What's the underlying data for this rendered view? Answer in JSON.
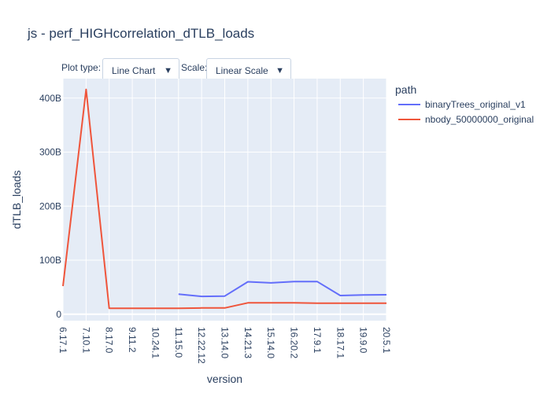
{
  "title": "js - perf_HIGHcorrelation_dTLB_loads",
  "controls": {
    "plot_type_label": "Plot type:",
    "plot_type_value": "Line Chart",
    "scale_label": "Scale:",
    "scale_value": "Linear Scale",
    "dropdown_arrow": "▼"
  },
  "colors": {
    "plot_bg": "#e5ecf6",
    "grid": "#ffffff",
    "text": "#2a3f5f",
    "series_1": "#636efa",
    "series_2": "#ef553b"
  },
  "chart_data": {
    "type": "line",
    "xlabel": "version",
    "ylabel": "dTLB_loads",
    "categories": [
      "6.17.1",
      "7.10.1",
      "8.17.0",
      "9.11.2",
      "10.24.1",
      "11.15.0",
      "12.22.12",
      "13.14.0",
      "14.21.3",
      "15.14.0",
      "16.20.2",
      "17.9.1",
      "18.17.1",
      "19.9.0",
      "20.5.1"
    ],
    "y_ticks": [
      {
        "value": 0,
        "label": "0"
      },
      {
        "value": 100000000000,
        "label": "100B"
      },
      {
        "value": 200000000000,
        "label": "200B"
      },
      {
        "value": 300000000000,
        "label": "300B"
      },
      {
        "value": 400000000000,
        "label": "400B"
      }
    ],
    "ylim": [
      -12000000000,
      436000000000
    ],
    "grid": true,
    "legend": {
      "title": "path",
      "placement": "right"
    },
    "series": [
      {
        "name": "binaryTrees_original_v1",
        "color": "#636efa",
        "values": [
          null,
          null,
          null,
          null,
          null,
          37000000000,
          33000000000,
          33500000000,
          60000000000,
          58000000000,
          60500000000,
          60500000000,
          34500000000,
          35500000000,
          36000000000
        ]
      },
      {
        "name": "nbody_50000000_original",
        "color": "#ef553b",
        "values": [
          52000000000,
          416000000000,
          11000000000,
          11000000000,
          11000000000,
          11000000000,
          11500000000,
          11500000000,
          21000000000,
          21000000000,
          21000000000,
          20500000000,
          20500000000,
          20500000000,
          20500000000
        ]
      }
    ]
  }
}
